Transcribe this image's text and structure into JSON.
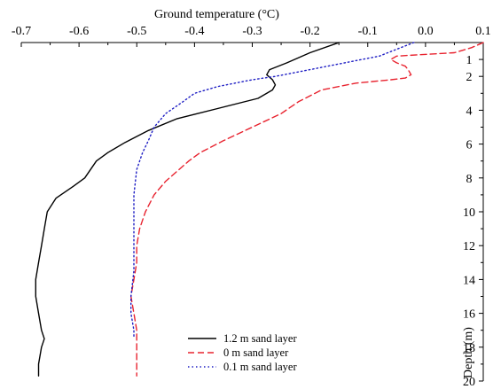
{
  "chart_data": {
    "type": "line",
    "title": "",
    "xlabel": "Ground temperature (°C)",
    "ylabel": "Depth (m)",
    "xlim": [
      -0.7,
      0.1
    ],
    "ylim": [
      0,
      20
    ],
    "y_inverted": true,
    "x_axis_position": "top",
    "y_axis_position": "right",
    "x_ticks": [
      "-0.7",
      "-0.6",
      "-0.5",
      "-0.4",
      "-0.3",
      "-0.2",
      "-0.1",
      "0.0",
      "0.1"
    ],
    "x_tick_values": [
      -0.7,
      -0.6,
      -0.5,
      -0.4,
      -0.3,
      -0.2,
      -0.1,
      0.0,
      0.1
    ],
    "y_ticks": [
      "1",
      "2",
      "4",
      "6",
      "8",
      "10",
      "12",
      "14",
      "16",
      "18",
      "20"
    ],
    "y_tick_values": [
      1,
      2,
      4,
      6,
      8,
      10,
      12,
      14,
      16,
      18,
      20
    ],
    "grid": false,
    "legend_position": "bottom-center",
    "series": [
      {
        "name": "1.2 m sand layer",
        "color": "#000000",
        "style": "solid",
        "points": [
          [
            -0.15,
            0.0
          ],
          [
            -0.2,
            0.6
          ],
          [
            -0.24,
            1.2
          ],
          [
            -0.27,
            1.6
          ],
          [
            -0.275,
            1.9
          ],
          [
            -0.265,
            2.2
          ],
          [
            -0.26,
            2.5
          ],
          [
            -0.265,
            2.8
          ],
          [
            -0.29,
            3.3
          ],
          [
            -0.36,
            3.9
          ],
          [
            -0.43,
            4.5
          ],
          [
            -0.48,
            5.2
          ],
          [
            -0.52,
            5.9
          ],
          [
            -0.55,
            6.5
          ],
          [
            -0.57,
            7.0
          ],
          [
            -0.58,
            7.5
          ],
          [
            -0.59,
            8.0
          ],
          [
            -0.61,
            8.5
          ],
          [
            -0.64,
            9.2
          ],
          [
            -0.655,
            10.0
          ],
          [
            -0.66,
            11.0
          ],
          [
            -0.665,
            12.0
          ],
          [
            -0.67,
            13.0
          ],
          [
            -0.675,
            14.0
          ],
          [
            -0.675,
            15.0
          ],
          [
            -0.67,
            16.0
          ],
          [
            -0.665,
            17.0
          ],
          [
            -0.66,
            17.5
          ],
          [
            -0.665,
            18.0
          ],
          [
            -0.67,
            19.0
          ],
          [
            -0.67,
            19.7
          ]
        ]
      },
      {
        "name": "0 m sand layer",
        "color": "#e8232f",
        "style": "dashed",
        "points": [
          [
            0.1,
            0.0
          ],
          [
            0.08,
            0.3
          ],
          [
            0.05,
            0.6
          ],
          [
            -0.05,
            0.8
          ],
          [
            -0.06,
            1.0
          ],
          [
            -0.05,
            1.2
          ],
          [
            -0.035,
            1.4
          ],
          [
            -0.03,
            1.6
          ],
          [
            -0.025,
            1.9
          ],
          [
            -0.035,
            2.1
          ],
          [
            -0.06,
            2.2
          ],
          [
            -0.12,
            2.4
          ],
          [
            -0.18,
            2.8
          ],
          [
            -0.22,
            3.5
          ],
          [
            -0.25,
            4.2
          ],
          [
            -0.3,
            5.0
          ],
          [
            -0.35,
            5.8
          ],
          [
            -0.39,
            6.5
          ],
          [
            -0.41,
            7.0
          ],
          [
            -0.43,
            7.6
          ],
          [
            -0.45,
            8.2
          ],
          [
            -0.47,
            9.0
          ],
          [
            -0.485,
            10.0
          ],
          [
            -0.495,
            11.0
          ],
          [
            -0.5,
            12.0
          ],
          [
            -0.5,
            13.0
          ],
          [
            -0.505,
            14.0
          ],
          [
            -0.51,
            15.0
          ],
          [
            -0.505,
            16.0
          ],
          [
            -0.5,
            17.0
          ],
          [
            -0.5,
            18.0
          ],
          [
            -0.5,
            19.7
          ]
        ]
      },
      {
        "name": "0.1 m sand layer",
        "color": "#1f1fc4",
        "style": "dotted",
        "points": [
          [
            -0.02,
            0.0
          ],
          [
            -0.05,
            0.4
          ],
          [
            -0.08,
            0.8
          ],
          [
            -0.14,
            1.2
          ],
          [
            -0.2,
            1.6
          ],
          [
            -0.26,
            2.0
          ],
          [
            -0.3,
            2.2
          ],
          [
            -0.36,
            2.6
          ],
          [
            -0.4,
            3.0
          ],
          [
            -0.42,
            3.5
          ],
          [
            -0.45,
            4.2
          ],
          [
            -0.47,
            5.0
          ],
          [
            -0.48,
            5.8
          ],
          [
            -0.49,
            6.5
          ],
          [
            -0.5,
            7.5
          ],
          [
            -0.505,
            9.0
          ],
          [
            -0.505,
            10.5
          ],
          [
            -0.505,
            12.0
          ],
          [
            -0.505,
            13.5
          ],
          [
            -0.51,
            15.0
          ],
          [
            -0.51,
            16.0
          ],
          [
            -0.505,
            17.0
          ],
          [
            -0.505,
            17.5
          ]
        ]
      }
    ]
  }
}
